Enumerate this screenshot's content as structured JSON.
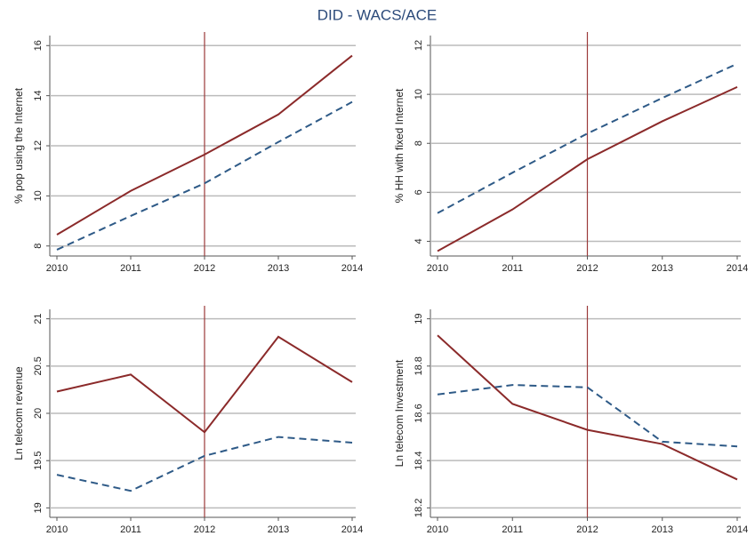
{
  "title": "DID - WACS/ACE",
  "chart_data": [
    {
      "type": "line",
      "ylabel": "% pop using the Internet",
      "x": [
        2010,
        2011,
        2012,
        2013,
        2014
      ],
      "xlim": [
        2010,
        2014
      ],
      "xticks": [
        2010,
        2011,
        2012,
        2013,
        2014
      ],
      "ylim": [
        7.6,
        16.4
      ],
      "yticks": [
        8,
        10,
        12,
        14,
        16
      ],
      "grid": true,
      "vline": 2012,
      "vline_color": "#9b3a3a",
      "series": [
        {
          "color": "#8b2a2a",
          "style": "solid",
          "values": [
            8.45,
            10.2,
            11.65,
            13.25,
            15.6
          ]
        },
        {
          "color": "#2e5a87",
          "style": "dashed",
          "values": [
            7.85,
            9.2,
            10.5,
            12.15,
            13.75
          ]
        }
      ]
    },
    {
      "type": "line",
      "ylabel": "% HH with fixed Internet",
      "x": [
        2010,
        2011,
        2012,
        2013,
        2014
      ],
      "xlim": [
        2010,
        2014
      ],
      "xticks": [
        2010,
        2011,
        2012,
        2013,
        2014
      ],
      "ylim": [
        3.4,
        12.4
      ],
      "yticks": [
        4,
        6,
        8,
        10,
        12
      ],
      "grid": true,
      "vline": 2012,
      "vline_color": "#9b3a3a",
      "series": [
        {
          "color": "#8b2a2a",
          "style": "solid",
          "values": [
            3.6,
            5.3,
            7.35,
            8.9,
            10.3
          ]
        },
        {
          "color": "#2e5a87",
          "style": "dashed",
          "values": [
            5.15,
            6.8,
            8.4,
            9.85,
            11.25
          ]
        }
      ]
    },
    {
      "type": "line",
      "ylabel": "Ln telecom revenue",
      "x": [
        2010,
        2011,
        2012,
        2013,
        2014
      ],
      "xlim": [
        2010,
        2014
      ],
      "xticks": [
        2010,
        2011,
        2012,
        2013,
        2014
      ],
      "ylim": [
        18.9,
        21.1
      ],
      "yticks": [
        19,
        19.5,
        20,
        20.5,
        21
      ],
      "grid": true,
      "vline": 2012,
      "vline_color": "#9b3a3a",
      "series": [
        {
          "color": "#8b2a2a",
          "style": "solid",
          "values": [
            20.23,
            20.41,
            19.8,
            20.81,
            20.33
          ]
        },
        {
          "color": "#2e5a87",
          "style": "dashed",
          "values": [
            19.35,
            19.18,
            19.55,
            19.75,
            19.69
          ]
        }
      ]
    },
    {
      "type": "line",
      "ylabel": "Ln telecom Investment",
      "x": [
        2010,
        2011,
        2012,
        2013,
        2014
      ],
      "xlim": [
        2010,
        2014
      ],
      "xticks": [
        2010,
        2011,
        2012,
        2013,
        2014
      ],
      "ylim": [
        18.16,
        19.04
      ],
      "yticks": [
        18.2,
        18.4,
        18.6,
        18.8,
        19
      ],
      "grid": true,
      "vline": 2012,
      "vline_color": "#9b3a3a",
      "series": [
        {
          "color": "#8b2a2a",
          "style": "solid",
          "values": [
            18.93,
            18.64,
            18.53,
            18.47,
            18.32
          ]
        },
        {
          "color": "#2e5a87",
          "style": "dashed",
          "values": [
            18.68,
            18.72,
            18.71,
            18.48,
            18.46
          ]
        }
      ]
    }
  ]
}
